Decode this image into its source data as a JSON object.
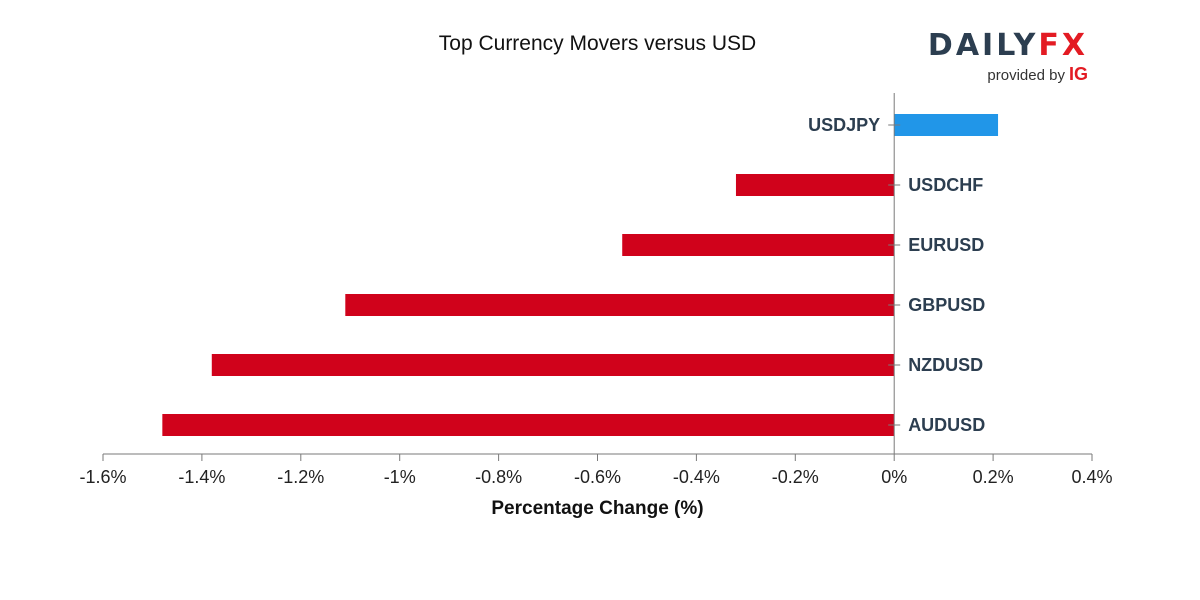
{
  "chart_data": {
    "type": "bar",
    "orientation": "horizontal",
    "title": "Top Currency Movers versus USD",
    "xlabel": "Percentage Change (%)",
    "ylabel": "",
    "categories": [
      "USDJPY",
      "USDCHF",
      "EURUSD",
      "GBPUSD",
      "NZDUSD",
      "AUDUSD"
    ],
    "values": [
      0.21,
      -0.32,
      -0.55,
      -1.11,
      -1.38,
      -1.48
    ],
    "xlim": [
      -1.6,
      0.4
    ],
    "xticks": [
      -1.6,
      -1.4,
      -1.2,
      -1,
      -0.8,
      -0.6,
      -0.4,
      -0.2,
      0,
      0.2,
      0.4
    ],
    "xtick_labels": [
      "-1.6%",
      "-1.4%",
      "-1.2%",
      "-1%",
      "-0.8%",
      "-0.6%",
      "-0.4%",
      "-0.2%",
      "0%",
      "0.2%",
      "0.4%"
    ],
    "grid": false,
    "colors": {
      "positive": "#2196e8",
      "negative": "#d0021b",
      "axis": "#7a7a7a"
    }
  },
  "brand": {
    "name_main": "DAILY",
    "name_accent": "FX",
    "provided_by": "provided by",
    "provider": "IG"
  }
}
